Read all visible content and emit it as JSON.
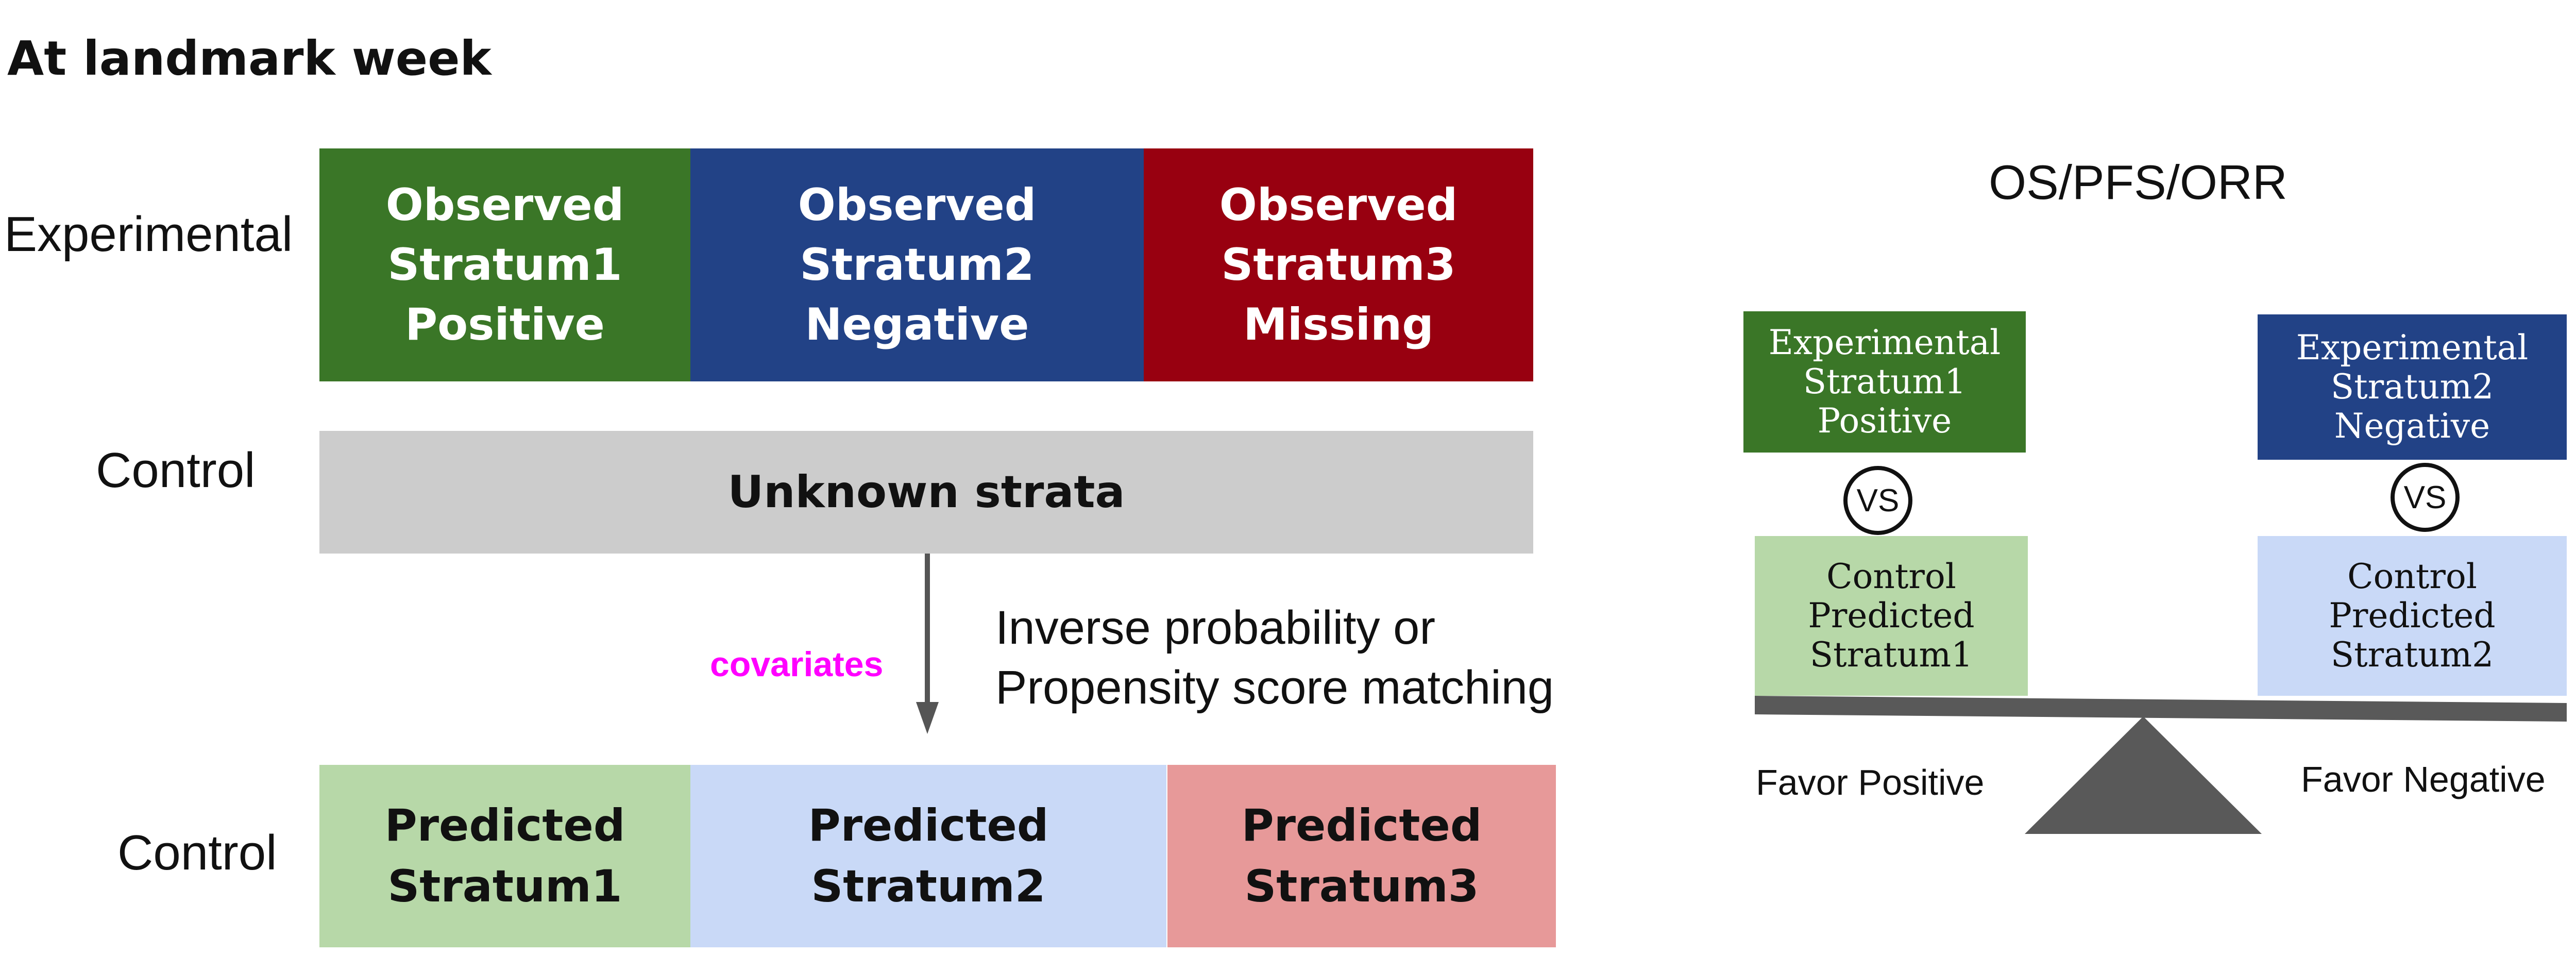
{
  "heading": "At landmark week",
  "row_labels": {
    "experimental": "Experimental",
    "control_top": "Control",
    "control_bottom": "Control"
  },
  "experimental_blocks": [
    {
      "lines": [
        "Observed",
        "Stratum1",
        "Positive"
      ],
      "color": "#3a7627"
    },
    {
      "lines": [
        "Observed",
        "Stratum2",
        "Negative"
      ],
      "color": "#224286"
    },
    {
      "lines": [
        "Observed",
        "Stratum3",
        "Missing"
      ],
      "color": "#980010"
    }
  ],
  "control_unknown": {
    "label": "Unknown strata",
    "color": "#cccccc"
  },
  "arrow": {
    "covariates_label": "covariates",
    "covariates_color": "#ff00ff",
    "method_lines": [
      "Inverse probability or",
      "Propensity score matching"
    ]
  },
  "predicted_blocks": [
    {
      "lines": [
        "Predicted",
        "Stratum1"
      ],
      "color": "#b7d8a8"
    },
    {
      "lines": [
        "Predicted",
        "Stratum2"
      ],
      "color": "#c9d9f7"
    },
    {
      "lines": [
        "Predicted",
        "Stratum3"
      ],
      "color": "#e79999"
    }
  ],
  "right_panel": {
    "title": "OS/PFS/ORR",
    "left_group": {
      "top_lines": [
        "Experimental",
        "Stratum1",
        "Positive"
      ],
      "top_color": "#3a7627",
      "vs": "VS",
      "bottom_lines": [
        "Control",
        "Predicted",
        "Stratum1"
      ],
      "bottom_color": "#b7d8a8"
    },
    "right_group": {
      "top_lines": [
        "Experimental",
        "Stratum2",
        "Negative"
      ],
      "top_color": "#224286",
      "vs": "VS",
      "bottom_lines": [
        "Control",
        "Predicted",
        "Stratum2"
      ],
      "bottom_color": "#c9d9f7"
    },
    "favor_left": "Favor Positive",
    "favor_right": "Favor Negative",
    "beam_color": "#595959"
  }
}
